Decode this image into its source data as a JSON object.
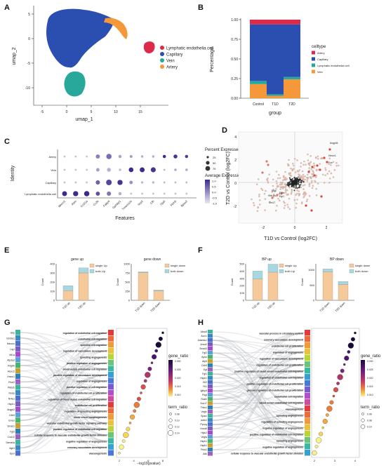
{
  "panels": {
    "A": {
      "label": "A",
      "xlabel": "umap_1",
      "ylabel": "umap_2",
      "xticks": [
        "-5",
        "0",
        "5",
        "10",
        "15"
      ],
      "yticks": [
        "5",
        "0",
        "-5",
        "-10"
      ],
      "legend": [
        {
          "label": "Lymphatic endothelia cell",
          "color": "#dd2a4a"
        },
        {
          "label": "Capillary",
          "color": "#2b4fb1"
        },
        {
          "label": "Vein",
          "color": "#27a89a"
        },
        {
          "label": "Artery",
          "color": "#f4983a"
        }
      ]
    },
    "B": {
      "label": "B",
      "ylabel": "Percentage",
      "xlabel": "group",
      "legend_title": "celltype",
      "legend": [
        {
          "label": "Artery",
          "color": "#dd2a4a"
        },
        {
          "label": "Capillary",
          "color": "#2b4fb1"
        },
        {
          "label": "Lymphatic endothelial cell",
          "color": "#27a89a"
        },
        {
          "label": "Vein",
          "color": "#f4983a"
        }
      ],
      "yticks": [
        "0.00",
        "0.25",
        "0.50",
        "0.75",
        "1.00"
      ]
    },
    "C": {
      "label": "C",
      "ylabel": "Identity",
      "xlabel": "Features",
      "size_legend_title": "Percent Expressed",
      "size_legend": [
        "25",
        "50",
        "75"
      ],
      "color_legend_title": "Average Expression",
      "color_legend": [
        "1.0",
        "0.5",
        "0.0",
        "-0.5",
        "-1.0"
      ]
    },
    "D": {
      "label": "D",
      "xlabel": "T1D vs Control (log2FC)",
      "ylabel": "T2D vs Control (log2FC)",
      "xticks": [
        "-2",
        "0",
        "2"
      ],
      "yticks": [
        "4",
        "2",
        "0",
        "-2"
      ],
      "annotations": [
        "Angptl4",
        "Hmox1",
        "Fos",
        "Mgp",
        "Hbb-bs",
        "Gm17",
        "Egr1",
        "Fosb"
      ]
    },
    "E": {
      "label": "E",
      "ylabel": "Count"
    },
    "F": {
      "label": "F",
      "ylabel": "Count"
    },
    "G": {
      "label": "G",
      "xlabel": "−log10(pvalue)",
      "xticks": [
        "2",
        "4",
        "6",
        "8"
      ],
      "gene_ratio_title": "gene_ratio",
      "gene_ratio_ticks": [
        "0.030",
        "0.025",
        "0.020",
        "0.015",
        "0.010"
      ],
      "term_ratio_title": "term_ratio",
      "term_ratio_ticks": [
        "0.08",
        "0.10",
        "0.12",
        "0.14"
      ],
      "genes": [
        "Gbp",
        "S100a1",
        "Mecom",
        "Lrg1",
        "Hif1a",
        "Atp2a2",
        "Pdgfrb",
        "Alox12",
        "Hmox1",
        "Prkd2",
        "Pik3cb",
        "Nrarp",
        "Nr4a1",
        "Hspb1",
        "Angpt2",
        "Cdh5",
        "Emcn",
        "Smad1",
        "Fgf2",
        "Cxcl12",
        "Sema4a",
        "Itgb3",
        "Epor"
      ],
      "terms": [
        "regulation of endothelial cell migration",
        "endothelial cell migration",
        "epithelial cell migration",
        "regulation of vasculature development",
        "sprouting angiogenesis",
        "positive regulation of angiogenesis",
        "blood vessel endothelial cell migration",
        "positive regulation of vasculature development",
        "regulation of angiogenesis",
        "positive regulation of cell migration",
        "regulation of endothelial cell proliferation",
        "regulation of blood vessel endothelial cell migration",
        "endothelial cell proliferation",
        "regulation of sprouting angiogenesis",
        "blood vessel morphogenesis",
        "vascular endothelial growth factor signaling pathway",
        "positive regulation of endothelial cell migration",
        "cellular response to vascular endothelial growth factor stimulus",
        "negative regulation of angiogenesis",
        "coronary vasculature development",
        "vasculogenesis"
      ]
    },
    "H": {
      "label": "H",
      "xticks": [
        "2",
        "3",
        "4"
      ],
      "gene_ratio_title": "gene_ratio",
      "gene_ratio_ticks": [
        "0.030",
        "0.025",
        "0.020",
        "0.015",
        "0.010"
      ],
      "term_ratio_title": "term_ratio",
      "term_ratio_ticks": [
        "0.06",
        "0.08",
        "0.10"
      ],
      "genes": [
        "Abcc8",
        "Acvr1",
        "Adamts1",
        "Anxa2",
        "Smad3",
        "Fgf2",
        "Aplnr",
        "Atp5",
        "Cdh5",
        "Egf",
        "Fgf1",
        "Hspb1",
        "Klf2",
        "Flt1",
        "Igfbp5",
        "Pdgf",
        "Roshi",
        "Sox17",
        "Thbs1",
        "Vegfc",
        "Sparc",
        "Adrb2",
        "Pyong",
        "Hoxa5",
        "Hipk2",
        "Vegfa",
        "Hspb1",
        "Hspb1",
        "Prkd1",
        "Adk"
      ],
      "terms": [
        "vascular process in circulatory system",
        "coronary vasculature development",
        "endothelial cell proliferation",
        "regulation of angiogenesis",
        "regulation of vasculature development",
        "regulation of endothelial cell proliferation",
        "positive regulation of blood vessel endothelial cell migration",
        "regulation of endothelial cell migration",
        "positive regulation of endothelial cell proliferation",
        "glucose regulation of endothelial cell proliferation",
        "endothelial cell migration",
        "blood vessel endothelial cell migration",
        "vasculogenesis",
        "sprouting angiogenesis",
        "regulation of sprouting angiogenesis",
        "negative regulation of angiogenesis",
        "positive regulation of endothelial cell migration",
        "sprouting angiogenesis",
        "negative regulation of angiogenesis",
        "cellular response to vascular endothelial growth factor stimulus"
      ]
    }
  },
  "chart_data": [
    {
      "panel": "B",
      "type": "bar",
      "stacked": true,
      "categories": [
        "Control",
        "T1D",
        "T2D"
      ],
      "series": [
        {
          "name": "Vein",
          "values": [
            0.18,
            0.03,
            0.24
          ]
        },
        {
          "name": "Lymphatic endothelial cell",
          "values": [
            0.04,
            0.02,
            0.03
          ]
        },
        {
          "name": "Capillary",
          "values": [
            0.72,
            0.89,
            0.67
          ]
        },
        {
          "name": "Artery",
          "values": [
            0.06,
            0.06,
            0.06
          ]
        }
      ],
      "ylim": [
        0,
        1
      ],
      "xlabel": "group",
      "ylabel": "Percentage"
    },
    {
      "panel": "C",
      "type": "scatter",
      "subtype": "dotplot",
      "features": [
        "Mmrn1",
        "Reln",
        "Ccl21a",
        "Cc2b",
        "Fabp4",
        "Gpihbp1",
        "Tmem100",
        "Nrp2",
        "Cfh",
        "Gja5",
        "Fbln5",
        "Bpax2"
      ],
      "identities": [
        "Artery",
        "Vein",
        "Capillary",
        "Lymphatic endothelia cell"
      ],
      "size": [
        [
          5,
          5,
          5,
          40,
          75,
          20,
          15,
          10,
          10,
          20,
          35,
          20
        ],
        [
          5,
          5,
          5,
          25,
          35,
          10,
          55,
          60,
          65,
          5,
          10,
          10
        ],
        [
          5,
          5,
          5,
          45,
          85,
          70,
          25,
          10,
          10,
          5,
          5,
          5
        ],
        [
          60,
          70,
          75,
          40,
          45,
          20,
          5,
          5,
          5,
          5,
          5,
          5
        ]
      ],
      "expression": [
        [
          -0.6,
          -0.6,
          -0.6,
          0.1,
          0.3,
          -0.3,
          -0.2,
          -0.4,
          -0.4,
          1.0,
          0.9,
          0.8
        ],
        [
          -0.6,
          -0.6,
          -0.6,
          -0.2,
          -0.4,
          -0.5,
          1.0,
          1.0,
          0.9,
          -0.5,
          -0.3,
          -0.3
        ],
        [
          -0.6,
          -0.6,
          -0.6,
          0.4,
          0.7,
          0.9,
          -0.1,
          -0.5,
          -0.5,
          -0.5,
          -0.5,
          -0.5
        ],
        [
          1.0,
          1.0,
          1.0,
          0.6,
          0.2,
          -0.4,
          -0.6,
          -0.6,
          -0.6,
          -0.6,
          -0.6,
          -0.6
        ]
      ],
      "xlabel": "Features",
      "ylabel": "Identity"
    },
    {
      "panel": "E-gene-up",
      "type": "bar",
      "title": "gene up",
      "categories": [
        "T1D up",
        "T2D up"
      ],
      "series": [
        {
          "name": "single Up",
          "values": [
            105,
            300
          ]
        },
        {
          "name": "both Up",
          "values": [
            55,
            55
          ]
        }
      ],
      "ylim": [
        0,
        400
      ],
      "yticks": [
        0,
        100,
        200,
        300,
        400
      ],
      "ylabel": "Count"
    },
    {
      "panel": "E-gene-down",
      "type": "bar",
      "title": "gene down",
      "categories": [
        "T1D down",
        "T2D down"
      ],
      "series": [
        {
          "name": "single down",
          "values": [
            755,
            255
          ]
        },
        {
          "name": "both down",
          "values": [
            25,
            25
          ]
        }
      ],
      "ylim": [
        0,
        1000
      ],
      "yticks": [
        0,
        250,
        500,
        750,
        1000
      ],
      "ylabel": "Count"
    },
    {
      "panel": "F-BP-up",
      "type": "bar",
      "title": "BP up",
      "categories": [
        "T1D up",
        "T2D up"
      ],
      "series": [
        {
          "name": "single Up",
          "values": [
            290,
            385
          ]
        },
        {
          "name": "both Up",
          "values": [
            110,
            110
          ]
        }
      ],
      "ylim": [
        0,
        500
      ],
      "yticks": [
        0,
        100,
        200,
        300,
        400,
        500
      ],
      "ylabel": "Count"
    },
    {
      "panel": "F-BP-down",
      "type": "bar",
      "title": "BP down",
      "categories": [
        "T1D down",
        "T2D down"
      ],
      "series": [
        {
          "name": "single down",
          "values": [
            930,
            520
          ]
        },
        {
          "name": "both down",
          "values": [
            100,
            100
          ]
        }
      ],
      "ylim": [
        0,
        1200
      ],
      "yticks": [
        0,
        500,
        1000
      ],
      "ylabel": "Count"
    }
  ]
}
